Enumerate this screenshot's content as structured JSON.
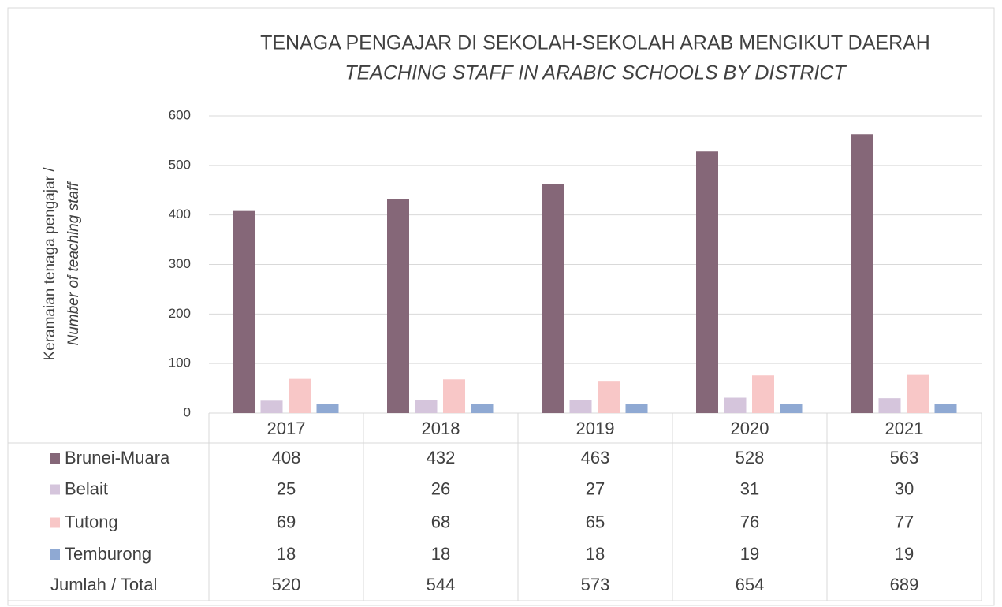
{
  "chart_data": {
    "type": "bar",
    "title": "TENAGA PENGAJAR DI SEKOLAH-SEKOLAH ARAB MENGIKUT DAERAH",
    "subtitle": "TEACHING STAFF IN ARABIC SCHOOLS BY DISTRICT",
    "y_label": "Keramaian tenaga pengajar /",
    "y_label_2": "Number of teaching staff",
    "categories": [
      "2017",
      "2018",
      "2019",
      "2020",
      "2021"
    ],
    "series": [
      {
        "name": "Brunei-Muara",
        "color": "#856778",
        "values": [
          408,
          432,
          463,
          528,
          563
        ]
      },
      {
        "name": "Belait",
        "color": "#d5c5dc",
        "values": [
          25,
          26,
          27,
          31,
          30
        ]
      },
      {
        "name": "Tutong",
        "color": "#f8c7c7",
        "values": [
          69,
          68,
          65,
          76,
          77
        ]
      },
      {
        "name": "Temburong",
        "color": "#8fa9d3",
        "values": [
          18,
          18,
          18,
          19,
          19
        ]
      }
    ],
    "totals": {
      "name": "Jumlah / Total",
      "values": [
        520,
        544,
        573,
        654,
        689
      ]
    },
    "ylim": [
      0,
      600
    ],
    "yticks": [
      0,
      100,
      200,
      300,
      400,
      500,
      600
    ],
    "grid": true
  }
}
